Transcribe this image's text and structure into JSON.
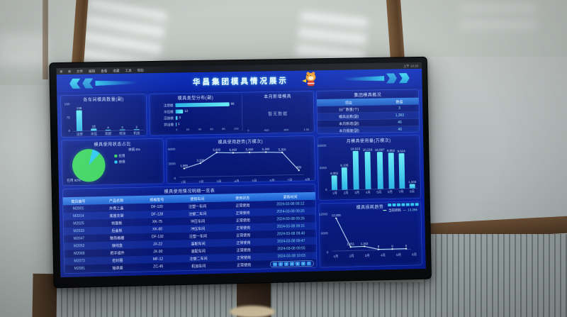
{
  "colors": {
    "dashboard_bg": "#0a24a2",
    "panel_bg": "#081a74",
    "accent_cyan": "#2fd2f0",
    "bar_cyan": "#4fdef2",
    "pie_green": "#3ad45e",
    "pie_cyan": "#29c8f0"
  },
  "menu_bar": {
    "items": [
      "文件",
      "编辑",
      "查看",
      "收藏",
      "工具",
      "帮助"
    ],
    "right_label": "上午 10:26"
  },
  "header": {
    "title": "华昌集团模具情况展示"
  },
  "panels": {
    "workshop": {
      "title": "各车间模具数量(副)",
      "type": "bar",
      "categories": [
        "注塑",
        "冲压",
        "装配",
        "喷涂",
        "机加"
      ],
      "values": [
        136,
        15,
        4,
        2,
        2
      ],
      "value_labels": [
        "136",
        "15",
        "4",
        "2",
        "2"
      ],
      "ymax": 150,
      "yticks": [
        "150",
        "75",
        "0"
      ]
    },
    "types": {
      "title": "模具类型分布(副)",
      "type": "hbar",
      "items": [
        {
          "label": "注塑模",
          "value": 86,
          "value_label": "86"
        },
        {
          "label": "冲压模",
          "value": 12,
          "value_label": "12"
        },
        {
          "label": "压铸模",
          "value": 3,
          "value_label": "3"
        },
        {
          "label": "挤出模",
          "value": 1,
          "value_label": "1"
        }
      ],
      "xmax": 100,
      "xticks": [
        "0",
        "20",
        "40",
        "60",
        "80",
        "100"
      ]
    },
    "new_molds": {
      "title": "本月新增模具",
      "empty_text": "暂无数据",
      "xticks": [
        "0",
        "400",
        "800",
        "1.2k"
      ]
    },
    "status_pie": {
      "title": "模具使用状态占比",
      "slices": [
        {
          "label": "在用",
          "value": 92,
          "color": "#3ad45e"
        },
        {
          "label": "停用",
          "value": 8,
          "color": "#29c8f0"
        }
      ],
      "callout_top": "停用 8%",
      "callout_bottom": "在用 92%"
    },
    "usage_trend": {
      "title": "模具使用趋势(万模次)",
      "type": "line",
      "x": [
        "1月",
        "2月",
        "3月",
        "4月",
        "5月",
        "6月",
        "7月",
        "8月"
      ],
      "values": [
        1900,
        3100,
        5600,
        5450,
        5450,
        5450,
        5300,
        900
      ],
      "labels": [
        "1,900",
        "3,100",
        "5,600",
        "5,450",
        "5,450",
        "5,450",
        "5,300",
        "900"
      ],
      "ymax": 6000,
      "yticks": [
        "6000",
        "3000",
        "0"
      ]
    },
    "detail_table": {
      "title": "模具使用情况明细一览表",
      "headers": [
        "模具编号",
        "产品名称",
        "规格型号",
        "使用车间",
        "使用状态",
        "更新时间"
      ],
      "rows": [
        [
          "M2001",
          "外壳上盖",
          "DF-120",
          "注塑一车间",
          "正常使用",
          "2024-03-08 09:12"
        ],
        [
          "M2014",
          "底座支架",
          "DF-128",
          "注塑二车间",
          "正常使用",
          "2024-03-08 09:20"
        ],
        [
          "M2025",
          "前面板",
          "XK-75",
          "冲压车间",
          "正常使用",
          "2024-03-08 09:26"
        ],
        [
          "M2033",
          "后盖板",
          "XK-80",
          "冲压车间",
          "正常使用",
          "2024-03-08 09:31"
        ],
        [
          "M2047",
          "散热格栅",
          "DF-132",
          "注塑一车间",
          "正常使用",
          "2024-03-08 09:40"
        ],
        [
          "M2052",
          "接线盒",
          "JX-22",
          "装配车间",
          "正常使用",
          "2024-03-08 09:47"
        ],
        [
          "M2068",
          "把手组件",
          "JX-30",
          "装配车间",
          "正常使用",
          "2024-03-08 09:55"
        ],
        [
          "M2073",
          "密封圈",
          "MF-12",
          "注塑二车间",
          "正常使用",
          "2024-03-08 10:03"
        ],
        [
          "M2081",
          "轴承座",
          "ZC-45",
          "机加车间",
          "正常使用",
          "2024-03-08 10:10"
        ]
      ],
      "pages": [
        "1",
        "2",
        "3",
        "4",
        "5",
        "6",
        "7"
      ]
    },
    "overview": {
      "title": "集团模具概况",
      "headers": [
        "项目",
        "数值"
      ],
      "rows": [
        [
          "分厂数量(个)",
          "3"
        ],
        [
          "模具总数(副)",
          "1,363"
        ],
        [
          "本月新增(副)",
          "46"
        ],
        [
          "本月报废(副)",
          "46"
        ]
      ]
    },
    "usage_bars": {
      "title": "月模具使用量(万模次)",
      "type": "bar",
      "categories": [
        "1月",
        "2月",
        "3月",
        "4月",
        "5月",
        "6月",
        "7月",
        "8月"
      ],
      "values": [
        4002,
        6105,
        10523,
        10216,
        10087,
        9852,
        9624,
        1203
      ],
      "value_labels": [
        "4,002",
        "6,105",
        "10,523",
        "10,216",
        "10,087",
        "9,852",
        "9,624",
        "1,203"
      ],
      "ymax": 11000,
      "yticks": [
        "10000",
        "5000",
        "0"
      ]
    },
    "loss_trend": {
      "title": "模具损耗趋势",
      "type": "line",
      "legend_label": "当前损耗",
      "legend_value": "13,256",
      "chips": [
        "1",
        "2",
        "3",
        "4",
        "5",
        "6",
        "7"
      ],
      "x": [
        "1月",
        "2月",
        "3月",
        "4月",
        "5月",
        "6月"
      ],
      "values": [
        13200,
        1251,
        1342,
        9,
        0,
        0
      ],
      "labels": [
        "13,200",
        "1,251",
        "1,342",
        "9",
        "0",
        "0"
      ],
      "ymax": 14000,
      "yticks": [
        "12000",
        "6000",
        "0"
      ]
    }
  }
}
